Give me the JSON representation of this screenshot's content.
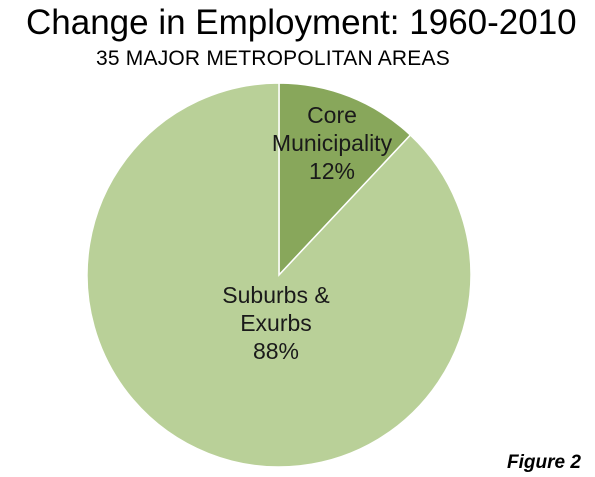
{
  "chart_data": {
    "type": "pie",
    "title": "Change in Employment: 1960-2010",
    "subtitle": "35 MAJOR METROPOLITAN AREAS",
    "slices": [
      {
        "label_lines": [
          "Core",
          "Municipality",
          "12%"
        ],
        "value": 12,
        "color": "#88a75b"
      },
      {
        "label_lines": [
          "Suburbs &",
          "Exurbs",
          "88%"
        ],
        "value": 88,
        "color": "#b9d098"
      }
    ],
    "legend": "none",
    "start_angle": "12 o'clock, clockwise"
  },
  "figure_label": "Figure 2"
}
